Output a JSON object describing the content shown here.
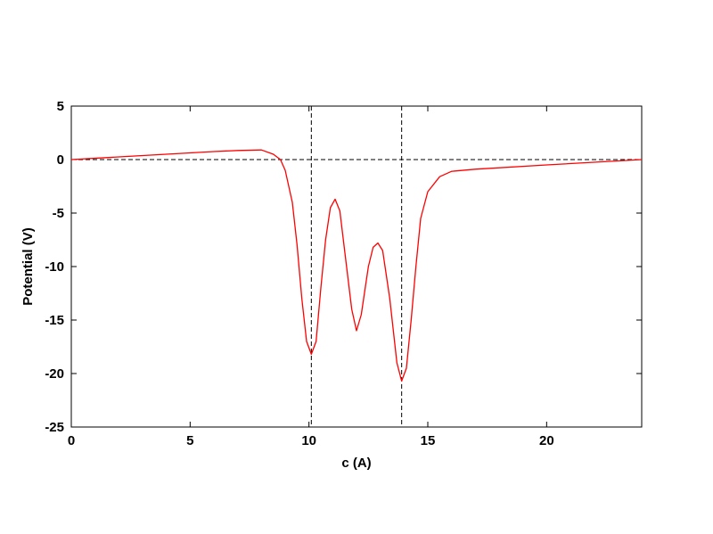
{
  "chart_data": {
    "type": "line",
    "xlabel": "c (A)",
    "ylabel": "Potential (V)",
    "x": [
      0,
      2,
      4,
      6,
      7,
      8,
      8.5,
      8.8,
      9.0,
      9.3,
      9.5,
      9.7,
      9.9,
      10.1,
      10.3,
      10.5,
      10.7,
      10.9,
      11.1,
      11.3,
      11.5,
      11.8,
      12.0,
      12.2,
      12.5,
      12.7,
      12.9,
      13.1,
      13.4,
      13.7,
      13.9,
      14.1,
      14.3,
      14.5,
      14.7,
      15,
      15.5,
      16,
      17,
      20,
      24
    ],
    "values": [
      0,
      0.25,
      0.5,
      0.75,
      0.85,
      0.9,
      0.5,
      0,
      -1,
      -4,
      -8,
      -13,
      -17,
      -18.2,
      -17,
      -12,
      -7.5,
      -4.5,
      -3.7,
      -4.8,
      -8.5,
      -14,
      -16,
      -14.5,
      -10,
      -8.2,
      -7.8,
      -8.5,
      -13,
      -19,
      -20.7,
      -19.5,
      -15,
      -10,
      -5.5,
      -3,
      -1.6,
      -1.1,
      -0.9,
      -0.5,
      0
    ],
    "color": "#ff0000",
    "vlines": [
      10.1,
      13.9
    ],
    "hlines": [
      0
    ],
    "xlim": [
      0,
      24
    ],
    "ylim": [
      -25,
      5
    ],
    "xticks": [
      0,
      5,
      10,
      15,
      20
    ],
    "yticks": [
      -25,
      -20,
      -15,
      -10,
      -5,
      0,
      5
    ]
  }
}
